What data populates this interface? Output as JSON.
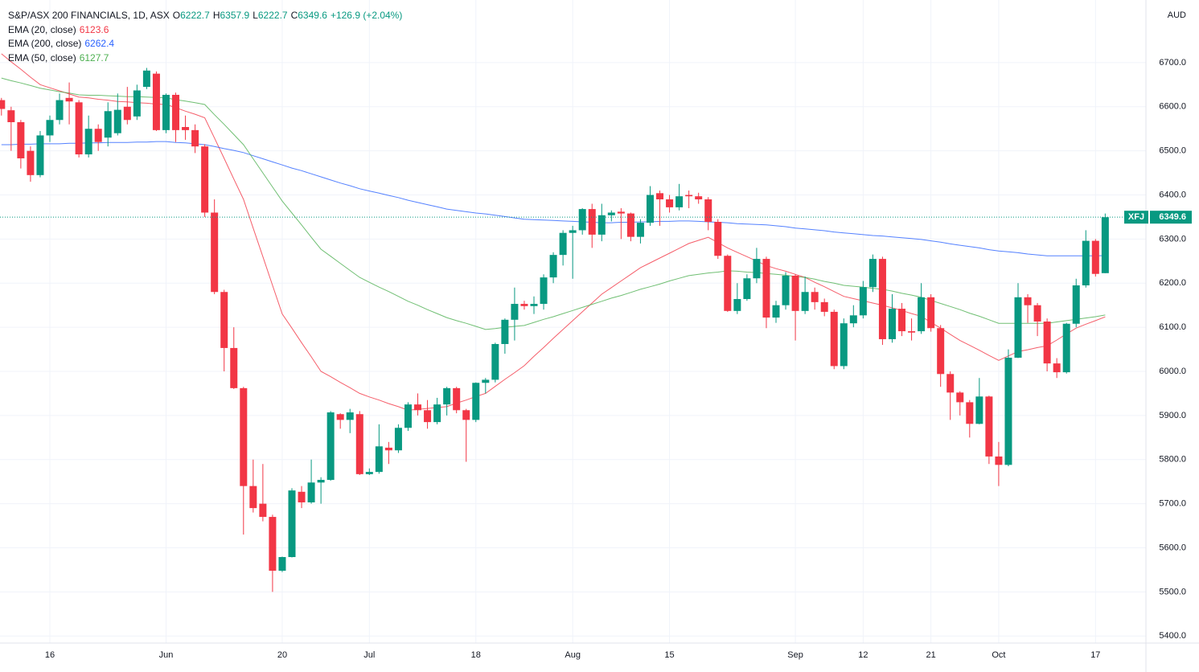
{
  "chart_data": {
    "type": "candlestick",
    "title": "S&P/ASX 200 FINANCIALS, 1D, ASX",
    "ohlc_letters": [
      "O",
      "H",
      "L",
      "C"
    ],
    "change": "+126.9 (+2.04%)",
    "currency": "AUD",
    "symbol": "XFJ",
    "up_color": "#089981",
    "down_color": "#f23645",
    "grid": true,
    "categories": [
      null,
      null,
      null,
      null,
      null,
      "16",
      null,
      null,
      null,
      null,
      null,
      null,
      null,
      null,
      null,
      null,
      null,
      "Jun",
      null,
      null,
      null,
      null,
      null,
      null,
      null,
      null,
      null,
      null,
      null,
      "20",
      null,
      null,
      null,
      null,
      null,
      null,
      null,
      null,
      "Jul",
      null,
      null,
      null,
      null,
      null,
      null,
      null,
      null,
      null,
      null,
      "18",
      null,
      null,
      null,
      null,
      null,
      null,
      null,
      null,
      null,
      "Aug",
      null,
      null,
      null,
      null,
      null,
      null,
      null,
      null,
      null,
      "15",
      null,
      null,
      null,
      null,
      null,
      null,
      null,
      null,
      null,
      null,
      null,
      null,
      "Sep",
      null,
      null,
      null,
      null,
      null,
      null,
      "12",
      null,
      null,
      null,
      null,
      null,
      null,
      "21",
      null,
      null,
      null,
      null,
      null,
      null,
      "Oct",
      null,
      null,
      null,
      null,
      null,
      null,
      null,
      null,
      null,
      "17",
      null
    ],
    "open": [
      6615,
      6592,
      6565,
      6500,
      6445,
      6535,
      6570,
      6620,
      6610,
      6492,
      6550,
      6530,
      6540,
      6600,
      6578,
      6645,
      6675,
      6547,
      6627,
      6554,
      6547,
      6510,
      6360,
      6180,
      6053,
      5962,
      5740,
      5700,
      5670,
      5548,
      5579,
      5727,
      5703,
      5748,
      5754,
      5903,
      5890,
      5903,
      5767,
      5772,
      5827,
      5821,
      5872,
      5925,
      5912,
      5885,
      5925,
      5962,
      5912,
      5890,
      5974,
      5981,
      6062,
      6117,
      6153,
      6148,
      6153,
      6213,
      6264,
      6314,
      6320,
      6368,
      6310,
      6354,
      6362,
      6358,
      6305,
      6337,
      6404,
      6390,
      6372,
      6400,
      6397,
      6390,
      6339,
      6262,
      6137,
      6164,
      6211,
      6255,
      6122,
      6150,
      6217,
      6137,
      6180,
      6157,
      6135,
      6012,
      6109,
      6127,
      6191,
      6255,
      6073,
      6142,
      6091,
      6091,
      6168,
      6098,
      5994,
      5952,
      5930,
      5881,
      5943,
      5807,
      5788,
      6031,
      6168,
      6150,
      6113,
      6018,
      5998,
      6108,
      6195,
      6296,
      6222.7
    ],
    "high": [
      6620,
      6600,
      6570,
      6510,
      6545,
      6580,
      6630,
      6655,
      6615,
      6580,
      6560,
      6610,
      6630,
      6645,
      6650,
      6688,
      6680,
      6630,
      6632,
      6580,
      6560,
      6515,
      6390,
      6185,
      6100,
      5965,
      5800,
      5790,
      5675,
      5580,
      5735,
      5740,
      5800,
      5760,
      5910,
      5905,
      5915,
      5910,
      5780,
      5880,
      5840,
      5880,
      5930,
      5950,
      5935,
      5940,
      5965,
      5965,
      5915,
      5975,
      5985,
      6065,
      6120,
      6190,
      6160,
      6170,
      6220,
      6270,
      6320,
      6330,
      6370,
      6380,
      6380,
      6365,
      6370,
      6360,
      6345,
      6420,
      6410,
      6400,
      6425,
      6410,
      6405,
      6395,
      6345,
      6265,
      6200,
      6220,
      6280,
      6260,
      6160,
      6225,
      6220,
      6215,
      6190,
      6165,
      6140,
      6120,
      6150,
      6205,
      6265,
      6260,
      6175,
      6155,
      6120,
      6200,
      6175,
      6105,
      6000,
      5955,
      5935,
      5985,
      5945,
      5840,
      6050,
      6200,
      6175,
      6155,
      6120,
      6030,
      6110,
      6210,
      6320,
      6300,
      6357.9
    ],
    "low": [
      6580,
      6500,
      6460,
      6430,
      6440,
      6520,
      6560,
      6560,
      6485,
      6485,
      6500,
      6510,
      6535,
      6560,
      6570,
      6640,
      6545,
      6540,
      6520,
      6525,
      6495,
      6350,
      6175,
      6000,
      5960,
      5630,
      5680,
      5660,
      5500,
      5545,
      5578,
      5690,
      5700,
      5700,
      5752,
      5870,
      5860,
      5765,
      5765,
      5768,
      5790,
      5815,
      5865,
      5900,
      5870,
      5880,
      5900,
      5905,
      5795,
      5885,
      5950,
      5975,
      6040,
      6070,
      6140,
      6130,
      6140,
      6200,
      6240,
      6210,
      6310,
      6280,
      6295,
      6340,
      6300,
      6295,
      6290,
      6330,
      6330,
      6360,
      6365,
      6370,
      6380,
      6320,
      6255,
      6135,
      6130,
      6160,
      6200,
      6098,
      6110,
      6140,
      6070,
      6130,
      6140,
      6125,
      6005,
      6005,
      6100,
      6120,
      6180,
      6060,
      6065,
      6080,
      6070,
      6085,
      6090,
      5965,
      5890,
      5900,
      5850,
      5880,
      5790,
      5740,
      5785,
      6030,
      6110,
      6080,
      6000,
      5985,
      5995,
      6100,
      6190,
      6215,
      6222.7
    ],
    "close": [
      6595,
      6565,
      6483,
      6445,
      6535,
      6570,
      6615,
      6612,
      6492,
      6550,
      6520,
      6590,
      6593,
      6570,
      6637,
      6682,
      6547,
      6627,
      6547,
      6547,
      6510,
      6360,
      6180,
      6053,
      5962,
      5740,
      5690,
      5670,
      5548,
      5579,
      5730,
      5703,
      5748,
      5754,
      5907,
      5890,
      5907,
      5767,
      5772,
      5830,
      5821,
      5872,
      5925,
      5912,
      5885,
      5925,
      5962,
      5912,
      5890,
      5974,
      5981,
      6062,
      6117,
      6153,
      6148,
      6153,
      6213,
      6264,
      6314,
      6320,
      6368,
      6310,
      6354,
      6360,
      6358,
      6305,
      6337,
      6400,
      6390,
      6372,
      6397,
      6397,
      6390,
      6339,
      6262,
      6137,
      6164,
      6211,
      6255,
      6122,
      6150,
      6217,
      6137,
      6180,
      6157,
      6135,
      6012,
      6109,
      6127,
      6191,
      6255,
      6073,
      6142,
      6091,
      6088,
      6168,
      6098,
      5994,
      5952,
      5930,
      5881,
      5943,
      5807,
      5788,
      6031,
      6168,
      6150,
      6113,
      6018,
      5998,
      6108,
      6195,
      6296,
      6221,
      6349.6
    ],
    "series": [
      {
        "name": "EMA (20, close)",
        "color": "#f23645",
        "values": [
          6720,
          6702,
          6685,
          6667,
          6650,
          6643,
          6636,
          6629,
          6622,
          6620,
          6617,
          6615,
          6612,
          6611,
          6609,
          6608,
          6606,
          6605,
          6598,
          6590,
          6583,
          6575,
          6529,
          6483,
          6436,
          6390,
          6325,
          6260,
          6195,
          6130,
          6098,
          6065,
          6033,
          6000,
          5988,
          5975,
          5963,
          5950,
          5942,
          5935,
          5927,
          5920,
          5912,
          5914,
          5916,
          5918,
          5920,
          5928,
          5935,
          5943,
          5950,
          5966,
          5982,
          5997,
          6013,
          6034,
          6054,
          6075,
          6095,
          6115,
          6135,
          6155,
          6175,
          6190,
          6205,
          6220,
          6235,
          6246,
          6257,
          6268,
          6279,
          6290,
          6297,
          6304,
          6292,
          6280,
          6270,
          6260,
          6250,
          6240,
          6233,
          6227,
          6220,
          6213,
          6202,
          6192,
          6181,
          6170,
          6165,
          6160,
          6155,
          6150,
          6144,
          6138,
          6131,
          6125,
          6111,
          6098,
          6084,
          6070,
          6059,
          6048,
          6036,
          6025,
          6035,
          6045,
          6049,
          6054,
          6058,
          6071,
          6085,
          6098,
          6107,
          6115,
          6123.6
        ]
      },
      {
        "name": "EMA (200, close)",
        "color": "#2962ff",
        "values": [
          6514,
          6514,
          6515,
          6515,
          6516,
          6516,
          6516,
          6517,
          6517,
          6518,
          6518,
          6519,
          6519,
          6519,
          6520,
          6520,
          6521,
          6521,
          6519,
          6518,
          6516,
          6514,
          6510,
          6505,
          6501,
          6496,
          6489,
          6482,
          6475,
          6468,
          6461,
          6455,
          6448,
          6441,
          6434,
          6427,
          6421,
          6414,
          6409,
          6404,
          6399,
          6394,
          6388,
          6383,
          6378,
          6373,
          6368,
          6365,
          6362,
          6359,
          6357,
          6354,
          6351,
          6348,
          6345,
          6344,
          6343,
          6342,
          6341,
          6340,
          6339,
          6338,
          6337,
          6337,
          6338,
          6338,
          6339,
          6339,
          6340,
          6340,
          6341,
          6341,
          6340,
          6339,
          6338,
          6337,
          6335,
          6334,
          6333,
          6332,
          6330,
          6328,
          6325,
          6323,
          6321,
          6319,
          6316,
          6314,
          6312,
          6310,
          6308,
          6307,
          6305,
          6303,
          6301,
          6299,
          6296,
          6293,
          6289,
          6286,
          6283,
          6280,
          6276,
          6273,
          6271,
          6269,
          6266,
          6264,
          6262,
          6262,
          6262,
          6262,
          6262,
          6262,
          6262.4
        ]
      },
      {
        "name": "EMA (50, close)",
        "color": "#4caf50",
        "values": [
          6665,
          6659,
          6654,
          6648,
          6642,
          6638,
          6634,
          6631,
          6627,
          6626,
          6626,
          6625,
          6624,
          6623,
          6623,
          6622,
          6621,
          6620,
          6616,
          6613,
          6609,
          6605,
          6582,
          6560,
          6537,
          6514,
          6482,
          6450,
          6418,
          6386,
          6359,
          6332,
          6304,
          6277,
          6261,
          6245,
          6229,
          6213,
          6202,
          6191,
          6181,
          6170,
          6159,
          6150,
          6140,
          6131,
          6122,
          6115,
          6109,
          6102,
          6095,
          6097,
          6100,
          6102,
          6104,
          6111,
          6118,
          6124,
          6131,
          6138,
          6145,
          6152,
          6159,
          6166,
          6172,
          6179,
          6186,
          6192,
          6198,
          6205,
          6211,
          6217,
          6220,
          6223,
          6225,
          6228,
          6227,
          6225,
          6224,
          6222,
          6220,
          6218,
          6215,
          6213,
          6209,
          6204,
          6200,
          6195,
          6193,
          6191,
          6188,
          6186,
          6182,
          6177,
          6173,
          6168,
          6161,
          6154,
          6147,
          6140,
          6132,
          6125,
          6117,
          6109,
          6109,
          6109,
          6109,
          6109,
          6109,
          6112,
          6115,
          6118,
          6121,
          6124,
          6127.7
        ]
      }
    ],
    "ylim": [
      5384,
      6842
    ],
    "yticks": [
      {
        "value": 5400,
        "label": "5400.0"
      },
      {
        "value": 5500,
        "label": "5500.0"
      },
      {
        "value": 5600,
        "label": "5600.0"
      },
      {
        "value": 5700,
        "label": "5700.0"
      },
      {
        "value": 5800,
        "label": "5800.0"
      },
      {
        "value": 5900,
        "label": "5900.0"
      },
      {
        "value": 6000,
        "label": "6000.0"
      },
      {
        "value": 6100,
        "label": "6100.0"
      },
      {
        "value": 6200,
        "label": "6200.0"
      },
      {
        "value": 6300,
        "label": "6300.0"
      },
      {
        "value": 6400,
        "label": "6400.0"
      },
      {
        "value": 6500,
        "label": "6500.0"
      },
      {
        "value": 6600,
        "label": "6600.0"
      },
      {
        "value": 6700,
        "label": "6700.0"
      }
    ]
  }
}
